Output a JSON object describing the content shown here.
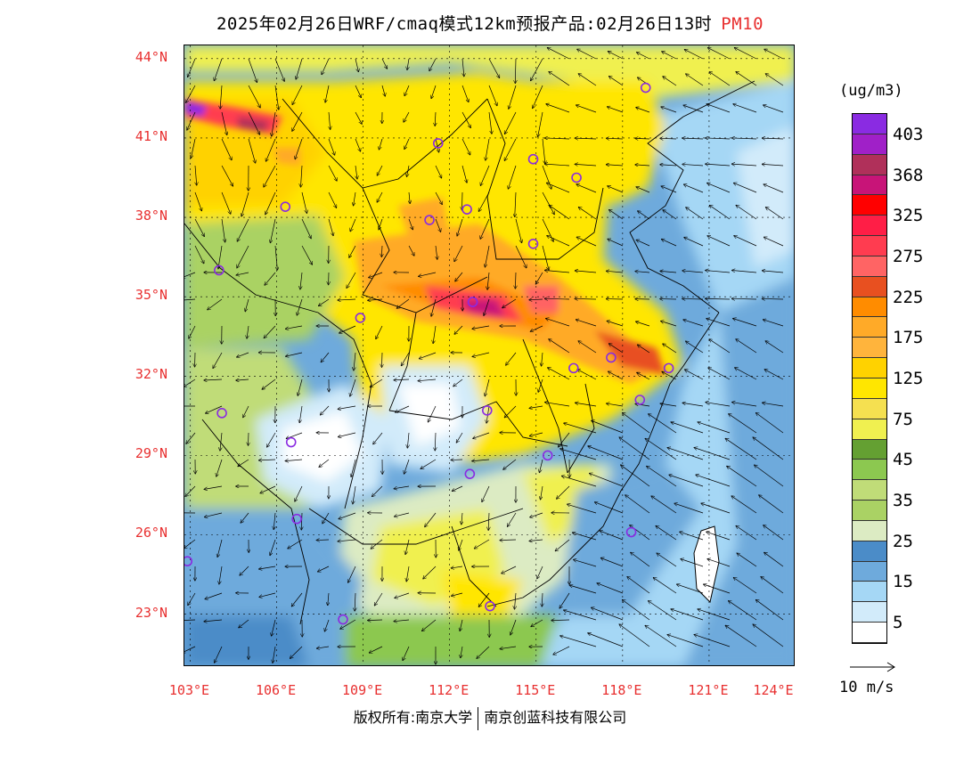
{
  "title": {
    "main": "2025年02月26日WRF/cmaq模式12km预报产品:02月26日13时",
    "pollutant": "PM10"
  },
  "axes": {
    "lat_labels": [
      "44°N",
      "41°N",
      "38°N",
      "35°N",
      "32°N",
      "29°N",
      "26°N",
      "23°N"
    ],
    "lon_labels": [
      "103°E",
      "106°E",
      "109°E",
      "112°E",
      "115°E",
      "118°E",
      "121°E",
      "124°E"
    ],
    "lat_range": [
      21,
      44.5
    ],
    "lon_range": [
      102.8,
      124
    ]
  },
  "colorbar": {
    "unit": "(ug/m3)",
    "labels": [
      "403",
      "368",
      "325",
      "275",
      "225",
      "175",
      "125",
      "75",
      "45",
      "35",
      "25",
      "15",
      "5"
    ],
    "colors": [
      "#8a2be2",
      "#a020c8",
      "#b0305a",
      "#c81478",
      "#ff0000",
      "#ff1e46",
      "#ff3c50",
      "#ff6464",
      "#e85020",
      "#ff8c00",
      "#ffaa28",
      "#ffb43c",
      "#ffd200",
      "#ffe600",
      "#f5e050",
      "#f0f050",
      "#64a032",
      "#8cc850",
      "#c0dc78",
      "#aad264",
      "#dcebc3",
      "#4b8cc8",
      "#6eaadc",
      "#a5d7f5",
      "#d2ebfa",
      "#ffffff"
    ]
  },
  "reference_vector": {
    "label": "10 m/s"
  },
  "cities": [
    {
      "lon": 118.8,
      "lat": 42.9
    },
    {
      "lon": 111.6,
      "lat": 40.8
    },
    {
      "lon": 114.9,
      "lat": 40.2
    },
    {
      "lon": 116.4,
      "lat": 39.5
    },
    {
      "lon": 106.3,
      "lat": 38.4
    },
    {
      "lon": 111.3,
      "lat": 37.9
    },
    {
      "lon": 112.6,
      "lat": 38.3
    },
    {
      "lon": 114.9,
      "lat": 37.0
    },
    {
      "lon": 104.0,
      "lat": 36.0
    },
    {
      "lon": 112.8,
      "lat": 34.8
    },
    {
      "lon": 108.9,
      "lat": 34.2
    },
    {
      "lon": 116.3,
      "lat": 32.3
    },
    {
      "lon": 117.6,
      "lat": 32.7
    },
    {
      "lon": 119.6,
      "lat": 32.3
    },
    {
      "lon": 104.1,
      "lat": 30.6
    },
    {
      "lon": 113.3,
      "lat": 30.7
    },
    {
      "lon": 118.6,
      "lat": 31.1
    },
    {
      "lon": 106.5,
      "lat": 29.5
    },
    {
      "lon": 115.4,
      "lat": 29.0
    },
    {
      "lon": 112.7,
      "lat": 28.3
    },
    {
      "lon": 106.7,
      "lat": 26.6
    },
    {
      "lon": 118.3,
      "lat": 26.1
    },
    {
      "lon": 102.9,
      "lat": 25.0
    },
    {
      "lon": 113.4,
      "lat": 23.3
    },
    {
      "lon": 108.3,
      "lat": 22.8
    }
  ]
}
